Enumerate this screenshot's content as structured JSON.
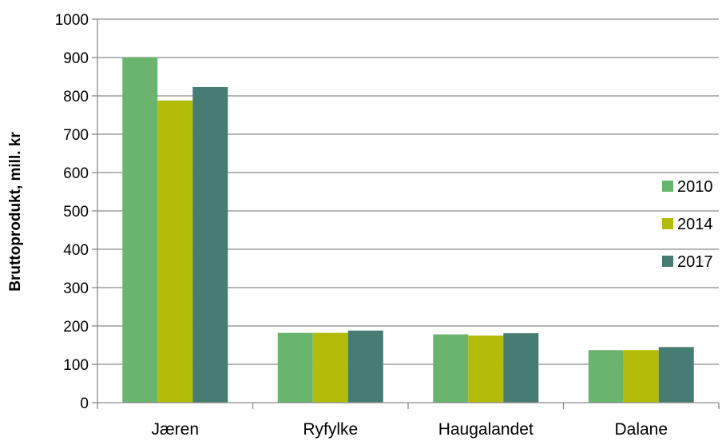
{
  "chart_data": {
    "type": "bar",
    "title": "",
    "xlabel": "",
    "ylabel": "Bruttoprodukt, mill. kr",
    "ylim": [
      0,
      1000
    ],
    "yticks": [
      "0",
      "100",
      "200",
      "300",
      "400",
      "500",
      "600",
      "700",
      "800",
      "900",
      "1000"
    ],
    "categories": [
      "Jæren",
      "Ryfylke",
      "Haugalandet",
      "Dalane"
    ],
    "series": [
      {
        "name": "2010",
        "color": "#6ab56e",
        "values": [
          900,
          182,
          178,
          137
        ]
      },
      {
        "name": "2014",
        "color": "#b4bc0a",
        "values": [
          788,
          182,
          175,
          137
        ]
      },
      {
        "name": "2017",
        "color": "#467c72",
        "values": [
          823,
          188,
          181,
          145
        ]
      }
    ],
    "grid": true,
    "legend_position": "right"
  }
}
